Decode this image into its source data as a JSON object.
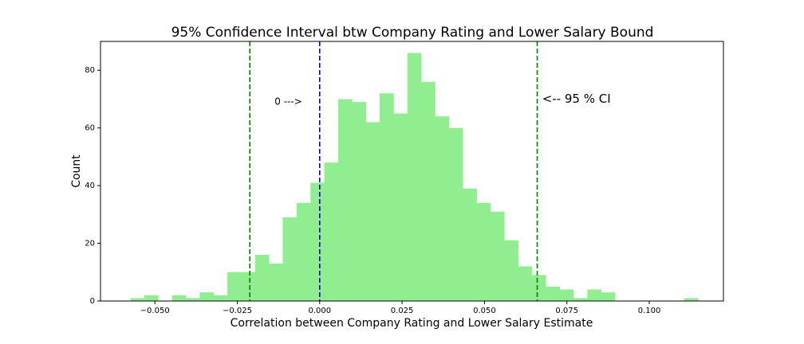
{
  "chart_data": {
    "type": "bar",
    "title": "95% Confidence Interval btw Company Rating and Lower Salary Bound",
    "xlabel": "Correlation between Company Rating and Lower Salary Estimate",
    "ylabel": "Count",
    "xlim": [
      -0.0665,
      0.1225
    ],
    "ylim": [
      0,
      90
    ],
    "xticks": [
      -0.05,
      -0.025,
      0.0,
      0.025,
      0.05,
      0.075,
      0.1
    ],
    "xtick_labels": [
      "−0.050",
      "−0.025",
      "0.000",
      "0.025",
      "0.050",
      "0.075",
      "0.100"
    ],
    "yticks": [
      0,
      20,
      40,
      60,
      80
    ],
    "ytick_labels": [
      "0",
      "20",
      "40",
      "60",
      "80"
    ],
    "bar_color": "#90ee90",
    "bin_width": 0.0042,
    "bins": [
      {
        "left": -0.0574,
        "count": 1
      },
      {
        "left": -0.0532,
        "count": 2
      },
      {
        "left": -0.0448,
        "count": 2
      },
      {
        "left": -0.0406,
        "count": 1
      },
      {
        "left": -0.0364,
        "count": 3
      },
      {
        "left": -0.0322,
        "count": 2
      },
      {
        "left": -0.028,
        "count": 10
      },
      {
        "left": -0.0238,
        "count": 10
      },
      {
        "left": -0.0196,
        "count": 16
      },
      {
        "left": -0.0154,
        "count": 13
      },
      {
        "left": -0.0112,
        "count": 29
      },
      {
        "left": -0.007,
        "count": 34
      },
      {
        "left": -0.0028,
        "count": 41
      },
      {
        "left": 0.0014,
        "count": 48
      },
      {
        "left": 0.0056,
        "count": 70
      },
      {
        "left": 0.0098,
        "count": 69
      },
      {
        "left": 0.014,
        "count": 62
      },
      {
        "left": 0.0182,
        "count": 72
      },
      {
        "left": 0.0224,
        "count": 65
      },
      {
        "left": 0.0266,
        "count": 86
      },
      {
        "left": 0.0308,
        "count": 76
      },
      {
        "left": 0.035,
        "count": 64
      },
      {
        "left": 0.0392,
        "count": 60
      },
      {
        "left": 0.0434,
        "count": 39
      },
      {
        "left": 0.0476,
        "count": 34
      },
      {
        "left": 0.0518,
        "count": 31
      },
      {
        "left": 0.056,
        "count": 21
      },
      {
        "left": 0.0602,
        "count": 12
      },
      {
        "left": 0.0644,
        "count": 9
      },
      {
        "left": 0.0686,
        "count": 5
      },
      {
        "left": 0.0728,
        "count": 4
      },
      {
        "left": 0.077,
        "count": 1
      },
      {
        "left": 0.0812,
        "count": 4
      },
      {
        "left": 0.0854,
        "count": 3
      },
      {
        "left": 0.1106,
        "count": 1
      }
    ],
    "vlines": [
      {
        "x": -0.0212,
        "color": "#008000",
        "style": "dashed"
      },
      {
        "x": 0.0,
        "color": "#0000cc",
        "style": "dashed"
      },
      {
        "x": 0.066,
        "color": "#008000",
        "style": "dashed"
      }
    ],
    "annotations": [
      {
        "text": "0 --->",
        "x": -0.0095,
        "y": 69,
        "size": "small"
      },
      {
        "text": "<-- 95 % CI",
        "x": 0.0675,
        "y": 70,
        "size": "large"
      }
    ],
    "grid": false
  }
}
